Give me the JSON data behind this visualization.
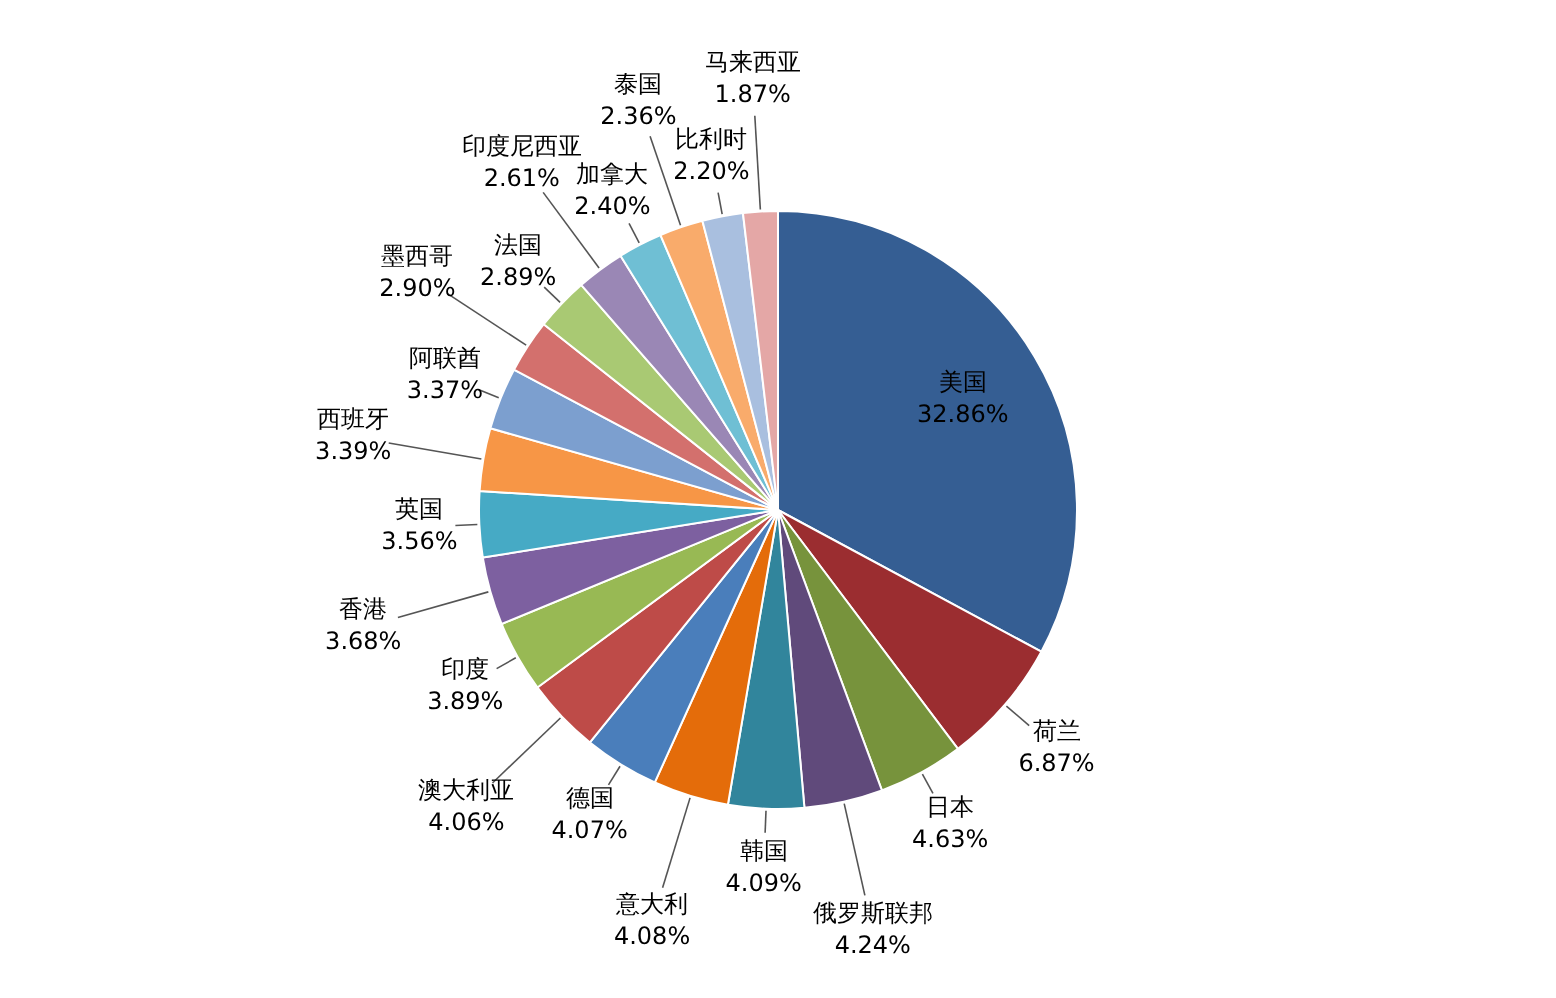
{
  "chart_data": {
    "type": "pie",
    "categories": [
      "美国",
      "荷兰",
      "日本",
      "俄罗斯联邦",
      "韩国",
      "意大利",
      "德国",
      "澳大利亚",
      "印度",
      "香港",
      "英国",
      "西班牙",
      "阿联酋",
      "墨西哥",
      "法国",
      "印度尼西亚",
      "加拿大",
      "泰国",
      "比利时",
      "马来西亚"
    ],
    "values": [
      32.86,
      6.87,
      4.63,
      4.24,
      4.09,
      4.08,
      4.07,
      4.06,
      3.89,
      3.68,
      3.56,
      3.39,
      3.37,
      2.9,
      2.89,
      2.61,
      2.4,
      2.36,
      2.2,
      1.87
    ],
    "value_labels": [
      "32.86%",
      "6.87%",
      "4.63%",
      "4.24%",
      "4.09%",
      "4.08%",
      "4.07%",
      "4.06%",
      "3.89%",
      "3.68%",
      "3.56%",
      "3.39%",
      "3.37%",
      "2.90%",
      "2.89%",
      "2.61%",
      "2.40%",
      "2.36%",
      "2.20%",
      "1.87%"
    ],
    "colors": [
      "#355e93",
      "#9b2d30",
      "#77933c",
      "#604a7b",
      "#31859c",
      "#e46c0a",
      "#4a7ebb",
      "#be4b48",
      "#98b954",
      "#7d60a0",
      "#46aac5",
      "#f79646",
      "#7c9fcf",
      "#d3706d",
      "#a9c973",
      "#9a87b5",
      "#6fbfd4",
      "#f9ab6b",
      "#a9bfdf",
      "#e4a7a6"
    ],
    "legend": false
  }
}
